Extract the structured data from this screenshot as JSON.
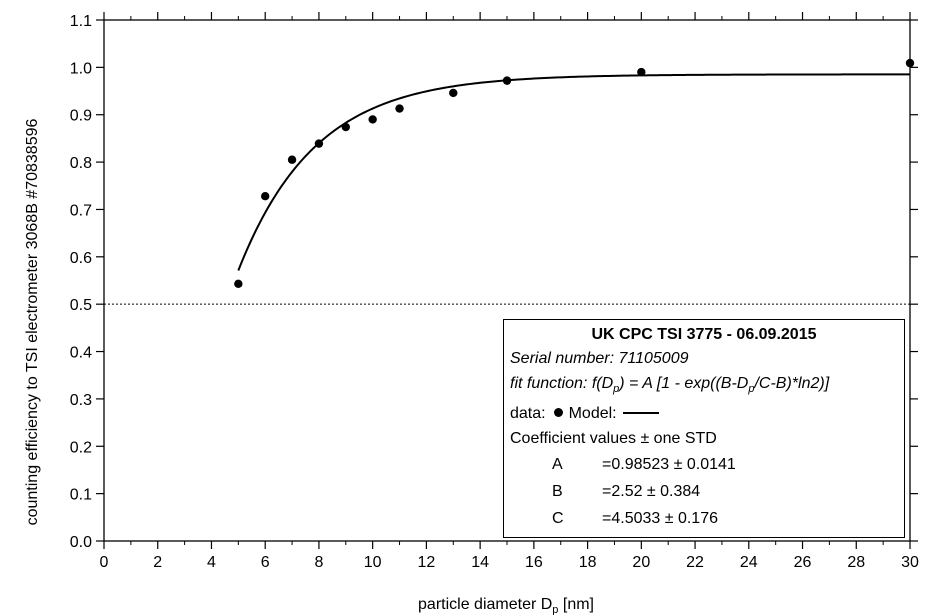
{
  "chart_data": {
    "type": "scatter",
    "xlabel": "particle diameter D",
    "xlabel_sub": "p",
    "xlabel_unit": " [nm]",
    "ylabel": "counting efficiency to TSI electrometer 3068B #70838596",
    "xlim": [
      0,
      30
    ],
    "ylim": [
      0.0,
      1.1
    ],
    "x_ticks": [
      0,
      2,
      4,
      6,
      8,
      10,
      12,
      14,
      16,
      18,
      20,
      22,
      24,
      26,
      28,
      30
    ],
    "y_ticks": [
      "0.0",
      "0.1",
      "0.2",
      "0.3",
      "0.4",
      "0.5",
      "0.6",
      "0.7",
      "0.8",
      "0.9",
      "1.0",
      "1.1"
    ],
    "series": [
      {
        "marker": "dot",
        "x": [
          5,
          6,
          7,
          8,
          9,
          10,
          11,
          13,
          15,
          20,
          30
        ],
        "y": [
          0.543,
          0.728,
          0.805,
          0.839,
          0.874,
          0.89,
          0.913,
          0.946,
          0.972,
          0.99,
          1.009
        ]
      }
    ],
    "fit": {
      "A": 0.98523,
      "B": 2.52,
      "C": 4.5033,
      "x_start": 5,
      "x_end": 30
    },
    "reference_line": {
      "y": 0.5,
      "style": "dotted"
    },
    "grid": false,
    "legend_placement": "bottom-right"
  },
  "legend": {
    "title": "UK CPC TSI 3775 - 06.09.2015",
    "serial": "Serial number: 71105009",
    "fit_prefix": "fit function: f(D",
    "fit_sub1": "p",
    "fit_mid": ") = A [1 - exp((B-D",
    "fit_sub2": "p",
    "fit_suffix": "/C-B)*ln2)]",
    "data_label": "data:",
    "model_label": "Model:",
    "coef_header": "Coefficient values ± one STD",
    "coefficients": [
      {
        "name": "A",
        "value": "=0.98523 ± 0.0141"
      },
      {
        "name": "B",
        "value": "=2.52 ± 0.384"
      },
      {
        "name": "C",
        "value": "=4.5033 ± 0.176"
      }
    ]
  }
}
